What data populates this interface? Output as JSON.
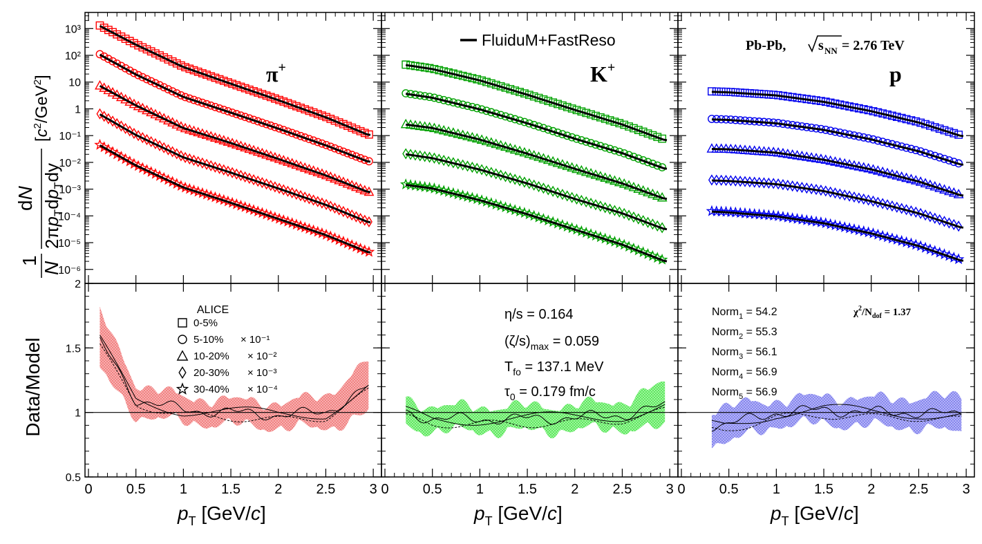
{
  "figure": {
    "y_axis_top_label": "[c²/GeV²]",
    "y_axis_top_prefix": "1/N dN/(2πp_T dp_T dy)",
    "y_axis_bottom_label": "Data/Model",
    "x_axis_label_pre": "p",
    "x_axis_label_sub": "T",
    "x_axis_label_post": " [GeV/c]",
    "legend_model": "FluiduM+FastReso",
    "system_label": "Pb-Pb,  √s_NN = 2.76 TeV",
    "system_pre": "Pb-Pb,",
    "system_s": "s",
    "system_sub": "NN",
    "system_post": " = 2.76 TeV",
    "alice_title": "ALICE",
    "centralities": [
      "0-5%",
      "5-10%",
      "10-20%",
      "20-30%",
      "30-40%"
    ],
    "scale_factors": [
      "",
      "× 10⁻¹",
      "× 10⁻²",
      "× 10⁻³",
      "× 10⁻⁴"
    ],
    "params": {
      "eta_s": "η/s = 0.164",
      "zeta_s_pre": "(ζ/s)",
      "zeta_s_sub": "max",
      "zeta_s_post": " = 0.059",
      "tfo_pre": "T",
      "tfo_sub": "fo",
      "tfo_post": " = 137.1 MeV",
      "tau_pre": "τ",
      "tau_sub": "0",
      "tau_post": " = 0.179 fm/c"
    },
    "norms": [
      {
        "pre": "Norm",
        "sub": "1",
        "post": " = 54.2"
      },
      {
        "pre": "Norm",
        "sub": "2",
        "post": " = 55.3"
      },
      {
        "pre": "Norm",
        "sub": "3",
        "post": " = 56.1"
      },
      {
        "pre": "Norm",
        "sub": "4",
        "post": " = 56.9"
      },
      {
        "pre": "Norm",
        "sub": "5",
        "post": " = 56.9"
      }
    ],
    "chi2": "χ²/N_dof = 1.37",
    "chi2_pre": "χ",
    "chi2_sup": "2",
    "chi2_mid": "/N",
    "chi2_sub": "dof",
    "chi2_post": " = 1.37"
  },
  "chart_data": [
    {
      "type": "scatter",
      "particle": "π⁺",
      "particle_base": "π",
      "particle_sup": "+",
      "color": "#ff0000",
      "x_range": [
        0,
        3.05
      ],
      "y_scale": "log",
      "ylim": [
        3e-07,
        4000
      ],
      "y_tick_labels": [
        "10⁻⁶",
        "10⁻⁵",
        "10⁻⁴",
        "10⁻³",
        "10⁻²",
        "10⁻¹",
        "1",
        "10",
        "10²",
        "10³"
      ],
      "x_tick_labels": [
        "0",
        "0.5",
        "1",
        "1.5",
        "2",
        "2.5",
        "3"
      ],
      "pt_min": 0.12,
      "series": [
        {
          "name": "0-5%",
          "marker": "square",
          "values_at_pt": [
            [
              0.12,
              1300
            ],
            [
              0.5,
              260
            ],
            [
              1,
              38
            ],
            [
              1.5,
              9
            ],
            [
              2,
              2.2
            ],
            [
              2.5,
              0.5
            ],
            [
              2.95,
              0.11
            ]
          ]
        },
        {
          "name": "5-10%",
          "marker": "circle",
          "values_at_pt": [
            [
              0.12,
              110
            ],
            [
              0.5,
              20
            ],
            [
              1,
              2.9
            ],
            [
              1.5,
              0.75
            ],
            [
              2,
              0.19
            ],
            [
              2.5,
              0.045
            ],
            [
              2.95,
              0.011
            ]
          ]
        },
        {
          "name": "10-20%",
          "marker": "triangle",
          "values_at_pt": [
            [
              0.12,
              7.5
            ],
            [
              0.5,
              1.4
            ],
            [
              1,
              0.2
            ],
            [
              1.5,
              0.055
            ],
            [
              2,
              0.014
            ],
            [
              2.5,
              0.0034
            ],
            [
              2.95,
              0.0008
            ]
          ]
        },
        {
          "name": "20-30%",
          "marker": "diamond",
          "values_at_pt": [
            [
              0.12,
              0.65
            ],
            [
              0.5,
              0.11
            ],
            [
              1,
              0.016
            ],
            [
              1.5,
              0.0043
            ],
            [
              2,
              0.0011
            ],
            [
              2.5,
              0.00027
            ],
            [
              2.95,
              6e-05
            ]
          ]
        },
        {
          "name": "30-40%",
          "marker": "star",
          "values_at_pt": [
            [
              0.12,
              0.045
            ],
            [
              0.5,
              0.008
            ],
            [
              1,
              0.0012
            ],
            [
              1.5,
              0.00032
            ],
            [
              2,
              8e-05
            ],
            [
              2.5,
              2e-05
            ],
            [
              2.95,
              4.5e-06
            ]
          ]
        }
      ],
      "ratio": {
        "ylim": [
          0.5,
          2
        ],
        "y_tick_labels": [
          "0.5",
          "1",
          "1.5",
          "2"
        ],
        "band_center": [
          [
            0.12,
            1.55
          ],
          [
            0.5,
            1.1
          ],
          [
            1,
            1.02
          ],
          [
            1.5,
            1.0
          ],
          [
            2,
            0.98
          ],
          [
            2.5,
            1.0
          ],
          [
            2.95,
            1.2
          ]
        ],
        "band_halfwidth": [
          [
            0.12,
            0.2
          ],
          [
            0.5,
            0.1
          ],
          [
            1,
            0.07
          ],
          [
            1.5,
            0.07
          ],
          [
            2,
            0.07
          ],
          [
            2.5,
            0.1
          ],
          [
            2.95,
            0.18
          ]
        ]
      }
    },
    {
      "type": "scatter",
      "particle": "K⁺",
      "particle_base": "K",
      "particle_sup": "+",
      "color": "#00a000",
      "band_color": "#33ee33",
      "x_range": [
        0,
        3.05
      ],
      "y_scale": "log",
      "ylim": [
        3e-07,
        4000
      ],
      "x_tick_labels": [
        "0",
        "0.5",
        "1",
        "1.5",
        "2",
        "2.5",
        "3"
      ],
      "pt_min": 0.22,
      "series": [
        {
          "name": "0-5%",
          "marker": "square",
          "values_at_pt": [
            [
              0.22,
              45
            ],
            [
              0.5,
              32
            ],
            [
              1,
              12
            ],
            [
              1.5,
              3.5
            ],
            [
              2,
              0.95
            ],
            [
              2.5,
              0.27
            ],
            [
              2.95,
              0.07
            ]
          ]
        },
        {
          "name": "5-10%",
          "marker": "circle",
          "values_at_pt": [
            [
              0.22,
              3.8
            ],
            [
              0.5,
              2.7
            ],
            [
              1,
              1.0
            ],
            [
              1.5,
              0.3
            ],
            [
              2,
              0.08
            ],
            [
              2.5,
              0.023
            ],
            [
              2.95,
              0.006
            ]
          ]
        },
        {
          "name": "10-20%",
          "marker": "triangle",
          "values_at_pt": [
            [
              0.22,
              0.27
            ],
            [
              0.5,
              0.2
            ],
            [
              1,
              0.074
            ],
            [
              1.5,
              0.022
            ],
            [
              2,
              0.006
            ],
            [
              2.5,
              0.0017
            ],
            [
              2.95,
              0.00045
            ]
          ]
        },
        {
          "name": "20-30%",
          "marker": "diamond",
          "values_at_pt": [
            [
              0.22,
              0.021
            ],
            [
              0.5,
              0.015
            ],
            [
              1,
              0.0056
            ],
            [
              1.5,
              0.0017
            ],
            [
              2,
              0.00045
            ],
            [
              2.5,
              0.00013
            ],
            [
              2.95,
              3.3e-05
            ]
          ]
        },
        {
          "name": "30-40%",
          "marker": "star",
          "values_at_pt": [
            [
              0.22,
              0.0015
            ],
            [
              0.5,
              0.0011
            ],
            [
              1,
              0.0004
            ],
            [
              1.5,
              0.00012
            ],
            [
              2,
              3.2e-05
            ],
            [
              2.5,
              8.8e-06
            ],
            [
              2.95,
              2.1e-06
            ]
          ]
        }
      ],
      "ratio": {
        "ylim": [
          0.5,
          2
        ],
        "band_center": [
          [
            0.22,
            1.0
          ],
          [
            0.5,
            0.95
          ],
          [
            1,
            0.95
          ],
          [
            1.5,
            0.95
          ],
          [
            2,
            0.96
          ],
          [
            2.5,
            0.98
          ],
          [
            2.95,
            1.05
          ]
        ],
        "band_halfwidth": [
          [
            0.22,
            0.08
          ],
          [
            0.5,
            0.07
          ],
          [
            1,
            0.07
          ],
          [
            1.5,
            0.07
          ],
          [
            2,
            0.07
          ],
          [
            2.5,
            0.08
          ],
          [
            2.95,
            0.15
          ]
        ]
      }
    },
    {
      "type": "scatter",
      "particle": "p",
      "particle_base": "p",
      "particle_sup": "",
      "color": "#0000ee",
      "band_color": "#6666ee",
      "x_range": [
        0,
        3.05
      ],
      "y_scale": "log",
      "ylim": [
        3e-07,
        4000
      ],
      "x_tick_labels": [
        "0",
        "0.5",
        "1",
        "1.5",
        "2",
        "2.5",
        "3"
      ],
      "pt_min": 0.32,
      "series": [
        {
          "name": "0-5%",
          "marker": "square",
          "values_at_pt": [
            [
              0.32,
              4.5
            ],
            [
              0.5,
              4.3
            ],
            [
              1,
              3.3
            ],
            [
              1.5,
              1.9
            ],
            [
              2,
              0.85
            ],
            [
              2.5,
              0.32
            ],
            [
              2.95,
              0.1
            ]
          ]
        },
        {
          "name": "5-10%",
          "marker": "circle",
          "values_at_pt": [
            [
              0.32,
              0.42
            ],
            [
              0.5,
              0.4
            ],
            [
              1,
              0.3
            ],
            [
              1.5,
              0.17
            ],
            [
              2,
              0.075
            ],
            [
              2.5,
              0.027
            ],
            [
              2.95,
              0.0085
            ]
          ]
        },
        {
          "name": "10-20%",
          "marker": "triangle",
          "values_at_pt": [
            [
              0.32,
              0.033
            ],
            [
              0.5,
              0.032
            ],
            [
              1,
              0.024
            ],
            [
              1.5,
              0.013
            ],
            [
              2,
              0.0057
            ],
            [
              2.5,
              0.002
            ],
            [
              2.95,
              0.0006
            ]
          ]
        },
        {
          "name": "20-30%",
          "marker": "diamond",
          "values_at_pt": [
            [
              0.32,
              0.0022
            ],
            [
              0.5,
              0.0021
            ],
            [
              1,
              0.0016
            ],
            [
              1.5,
              0.00088
            ],
            [
              2,
              0.00037
            ],
            [
              2.5,
              0.00013
            ],
            [
              2.95,
              3.8e-05
            ]
          ]
        },
        {
          "name": "30-40%",
          "marker": "star",
          "values_at_pt": [
            [
              0.32,
              0.00015
            ],
            [
              0.5,
              0.00014
            ],
            [
              1,
              0.0001
            ],
            [
              1.5,
              5.5e-05
            ],
            [
              2,
              2.3e-05
            ],
            [
              2.5,
              7.8e-06
            ],
            [
              2.95,
              2.2e-06
            ]
          ]
        }
      ],
      "ratio": {
        "ylim": [
          0.5,
          2
        ],
        "band_center": [
          [
            0.32,
            0.9
          ],
          [
            0.45,
            0.9
          ],
          [
            1,
            1.0
          ],
          [
            1.5,
            1.02
          ],
          [
            2,
            1.0
          ],
          [
            2.5,
            1.0
          ],
          [
            2.95,
            0.98
          ]
        ],
        "band_halfwidth": [
          [
            0.32,
            0.1
          ],
          [
            0.45,
            0.12
          ],
          [
            1,
            0.07
          ],
          [
            1.5,
            0.08
          ],
          [
            2,
            0.08
          ],
          [
            2.5,
            0.09
          ],
          [
            2.95,
            0.12
          ]
        ]
      }
    }
  ]
}
